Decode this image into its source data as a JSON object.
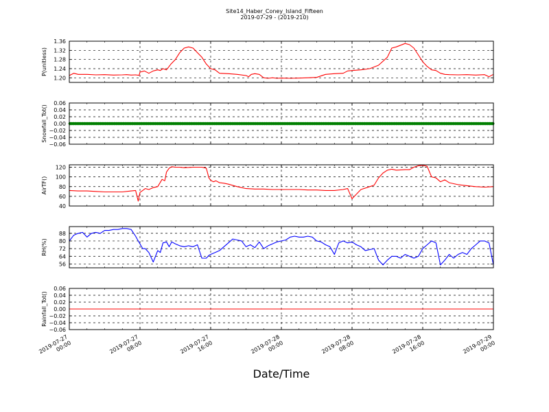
{
  "figure": {
    "title_line1": "Site14_Haber_Coney_Island_Fifteen",
    "title_line2": "2019-07-29 - (2019-210)",
    "xlabel": "Date/Time",
    "x_tick_labels": [
      [
        "2019-07-27",
        "00:00"
      ],
      [
        "2019-07-27",
        "08:00"
      ],
      [
        "2019-07-27",
        "16:00"
      ],
      [
        "2019-07-28",
        "00:00"
      ],
      [
        "2019-07-28",
        "08:00"
      ],
      [
        "2019-07-28",
        "16:00"
      ],
      [
        "2019-07-29",
        "00:00"
      ]
    ]
  },
  "chart_data": [
    {
      "type": "line",
      "ylabel": "P(unitless)",
      "ylim": [
        1.18,
        1.36
      ],
      "yticks": [
        "1.20",
        "1.24",
        "1.28",
        "1.32",
        "1.36"
      ],
      "grid": true,
      "series": [
        {
          "color": "#ff0000",
          "x": [
            0,
            0.5,
            1,
            2,
            3,
            4,
            5,
            6,
            6.5,
            7,
            7.5,
            7.9,
            8,
            8.5,
            9,
            9.5,
            10,
            10.3,
            10.6,
            11,
            11.5,
            12,
            12.5,
            13,
            13.5,
            14,
            14.5,
            15,
            15.5,
            16,
            16.5,
            17,
            18,
            19,
            20,
            20.3,
            20.6,
            21,
            21.5,
            22,
            22.5,
            23,
            23.5,
            24,
            25,
            26,
            27,
            28,
            29,
            30,
            31,
            31.5,
            32,
            33,
            34,
            35,
            36,
            36.5,
            37,
            38,
            38.5,
            39,
            39.5,
            40,
            40.5,
            41,
            41.5,
            42,
            42.5,
            43,
            44,
            45,
            46,
            47,
            47.5,
            48
          ],
          "y": [
            1.21,
            1.22,
            1.215,
            1.215,
            1.213,
            1.214,
            1.212,
            1.213,
            1.214,
            1.212,
            1.213,
            1.211,
            1.225,
            1.23,
            1.22,
            1.23,
            1.235,
            1.232,
            1.24,
            1.235,
            1.26,
            1.28,
            1.31,
            1.33,
            1.335,
            1.33,
            1.31,
            1.29,
            1.26,
            1.24,
            1.235,
            1.22,
            1.218,
            1.215,
            1.21,
            1.205,
            1.215,
            1.218,
            1.215,
            1.2,
            1.198,
            1.2,
            1.198,
            1.199,
            1.198,
            1.199,
            1.2,
            1.202,
            1.215,
            1.218,
            1.22,
            1.23,
            1.232,
            1.235,
            1.24,
            1.255,
            1.29,
            1.33,
            1.335,
            1.35,
            1.345,
            1.33,
            1.3,
            1.27,
            1.25,
            1.235,
            1.232,
            1.22,
            1.215,
            1.214,
            1.213,
            1.214,
            1.212,
            1.214,
            1.205,
            1.215
          ]
        }
      ]
    },
    {
      "type": "line",
      "ylabel": "Snowfall_Tot()",
      "ylim": [
        -0.06,
        0.06
      ],
      "yticks": [
        "−0.06",
        "−0.04",
        "−0.02",
        "0.00",
        "0.02",
        "0.04",
        "0.06"
      ],
      "grid": true,
      "series": [
        {
          "color": "#007f00",
          "markers": true,
          "x": [
            0,
            48
          ],
          "y": [
            0,
            0
          ]
        }
      ]
    },
    {
      "type": "line",
      "ylabel": "AirTF()",
      "ylim": [
        40,
        125
      ],
      "yticks": [
        "40",
        "60",
        "80",
        "100",
        "120"
      ],
      "grid": true,
      "series": [
        {
          "color": "#ff0000",
          "x": [
            0,
            1,
            2,
            3,
            4,
            5,
            6,
            7,
            7.5,
            7.8,
            8,
            8.3,
            8.6,
            9,
            9.5,
            10,
            10.5,
            10.8,
            11,
            11.3,
            11.6,
            12,
            12.5,
            13,
            14,
            15,
            15.5,
            15.8,
            16,
            16.3,
            16.6,
            17,
            17.5,
            18,
            19,
            20,
            21,
            22,
            23,
            24,
            25,
            26,
            27,
            28,
            29,
            30,
            31,
            31.5,
            32,
            33,
            34,
            34.5,
            35,
            35.5,
            36,
            36.5,
            37,
            38,
            38.5,
            39,
            39.5,
            40,
            40.5,
            41,
            41.5,
            42,
            42.5,
            43,
            44,
            45,
            46,
            47,
            48
          ],
          "y": [
            72,
            71,
            71,
            70,
            69,
            69,
            69,
            71,
            72,
            50,
            68,
            72,
            76,
            74,
            78,
            80,
            95,
            92,
            110,
            118,
            121,
            120,
            120,
            119,
            120,
            120,
            118,
            98,
            93,
            90,
            92,
            88,
            87,
            85,
            80,
            76,
            75,
            75,
            74,
            74,
            74,
            74,
            73,
            73,
            72,
            72,
            74,
            76,
            55,
            74,
            80,
            83,
            98,
            108,
            114,
            116,
            114,
            115,
            115,
            120,
            123,
            124,
            122,
            100,
            98,
            90,
            94,
            88,
            84,
            82,
            80,
            79,
            80
          ]
        }
      ]
    },
    {
      "type": "line",
      "ylabel": "RH(%)",
      "ylim": [
        52,
        95
      ],
      "yticks": [
        "56",
        "64",
        "72",
        "80",
        "88"
      ],
      "grid": true,
      "series": [
        {
          "color": "#0000ff",
          "x": [
            0,
            0.5,
            1,
            1.5,
            2,
            2.5,
            3,
            3.5,
            4,
            4.5,
            5,
            5.5,
            6,
            6.5,
            7,
            7.5,
            7.8,
            8,
            8.3,
            8.6,
            9,
            9.5,
            10,
            10.3,
            10.6,
            11,
            11.3,
            11.6,
            12,
            12.5,
            13,
            13.5,
            14,
            14.5,
            15,
            15.5,
            15.8,
            16,
            16.5,
            17,
            17.5,
            18,
            18.5,
            19,
            19.5,
            20,
            20.5,
            21,
            21.5,
            22,
            22.5,
            23,
            23.5,
            24,
            24.5,
            25,
            25.5,
            26,
            26.5,
            27,
            27.5,
            28,
            28.5,
            29,
            29.5,
            30,
            30.5,
            31,
            31.5,
            32,
            32.5,
            33,
            33.5,
            34,
            34.5,
            35,
            35.5,
            36,
            36.5,
            37,
            37.5,
            38,
            38.5,
            39,
            39.5,
            40,
            40.5,
            41,
            41.5,
            42,
            42.5,
            43,
            43.5,
            44,
            44.5,
            45,
            45.5,
            46,
            46.5,
            47,
            47.5,
            48
          ],
          "y": [
            80,
            86,
            88,
            89,
            84,
            88,
            89,
            88,
            91,
            91,
            92,
            92,
            93,
            93,
            92,
            85,
            80,
            77,
            72,
            72,
            68,
            58,
            70,
            68,
            78,
            79,
            74,
            79,
            77,
            75,
            74,
            75,
            74,
            76,
            62,
            62,
            65,
            66,
            68,
            70,
            74,
            78,
            82,
            81,
            80,
            74,
            76,
            73,
            79,
            72,
            75,
            77,
            79,
            80,
            81,
            84,
            85,
            84,
            84,
            85,
            84,
            80,
            79,
            76,
            74,
            66,
            78,
            80,
            78,
            79,
            76,
            74,
            70,
            71,
            72,
            60,
            55,
            60,
            64,
            64,
            62,
            66,
            64,
            62,
            64,
            72,
            76,
            80,
            78,
            55,
            60,
            66,
            62,
            66,
            68,
            66,
            72,
            76,
            80,
            80,
            78,
            55
          ]
        }
      ]
    },
    {
      "type": "line",
      "ylabel": "Rainfall_Tot()",
      "ylim": [
        -0.06,
        0.06
      ],
      "yticks": [
        "−0.06",
        "−0.04",
        "−0.02",
        "0.00",
        "0.02",
        "0.04",
        "0.06"
      ],
      "grid": true,
      "series": [
        {
          "color": "#ff0000",
          "x": [
            0,
            48
          ],
          "y": [
            0,
            0
          ]
        }
      ]
    }
  ]
}
